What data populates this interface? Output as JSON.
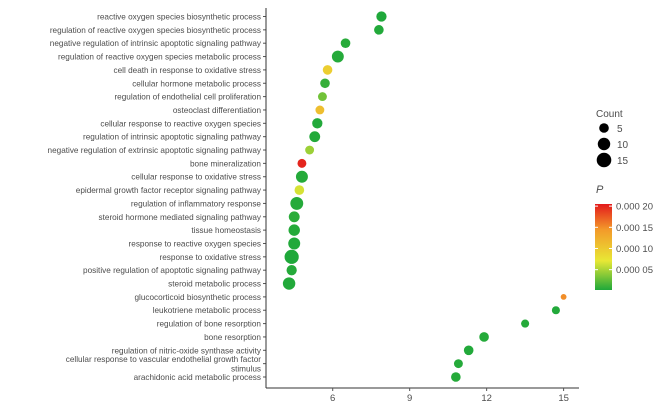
{
  "chart_data": {
    "type": "scatter",
    "title": "",
    "xlabel": "",
    "ylabel": "",
    "xlim": [
      3.4,
      15.6
    ],
    "x_ticks": [
      6,
      9,
      12,
      15
    ],
    "x_tick_labels": [
      "6",
      "9",
      "12",
      "15"
    ],
    "grid": false,
    "categories": [
      "reactive oxygen species biosynthetic process",
      "regulation of reactive oxygen species biosynthetic process",
      "negative regulation of intrinsic apoptotic signaling pathway",
      "regulation of reactive oxygen species metabolic process",
      "cell death in response to oxidative stress",
      "cellular hormone metabolic process",
      "regulation of endothelial cell proliferation",
      "osteoclast differentiation",
      "cellular response to reactive oxygen species",
      "regulation of intrinsic apoptotic signaling pathway",
      "negative regulation of extrinsic apoptotic signaling pathway",
      "bone mineralization",
      "cellular response to oxidative stress",
      "epidermal growth factor receptor signaling pathway",
      "regulation of inflammatory response",
      "steroid hormone mediated signaling pathway",
      "tissue homeostasis",
      "response to reactive oxygen species",
      "response to oxidative stress",
      "positive regulation of apoptotic signaling pathway",
      "steroid metabolic process",
      "glucocorticoid biosynthetic process",
      "leukotriene metabolic process",
      "regulation of bone resorption",
      "bone resorption",
      "regulation of nitric-oxide synthase activity",
      "cellular response to vascular endothelial growth factor stimulus",
      "arachidonic acid metabolic process"
    ],
    "category_label_lines": [
      [
        "reactive oxygen species biosynthetic process"
      ],
      [
        "regulation of reactive oxygen species biosynthetic process"
      ],
      [
        "negative regulation of intrinsic apoptotic signaling pathway"
      ],
      [
        "regulation of reactive oxygen species metabolic process"
      ],
      [
        "cell death in response to oxidative stress"
      ],
      [
        "cellular hormone metabolic process"
      ],
      [
        "regulation of endothelial cell proliferation"
      ],
      [
        "osteoclast differentiation"
      ],
      [
        "cellular response to reactive oxygen species"
      ],
      [
        "regulation of intrinsic apoptotic signaling pathway"
      ],
      [
        "negative regulation of extrinsic apoptotic signaling pathway"
      ],
      [
        "bone mineralization"
      ],
      [
        "cellular response to oxidative stress"
      ],
      [
        "epidermal growth factor receptor signaling pathway"
      ],
      [
        "regulation of inflammatory response"
      ],
      [
        "steroid hormone mediated signaling pathway"
      ],
      [
        "tissue homeostasis"
      ],
      [
        "response to reactive oxygen species"
      ],
      [
        "response to oxidative stress"
      ],
      [
        "positive regulation of apoptotic signaling pathway"
      ],
      [
        "steroid metabolic process"
      ],
      [
        "glucocorticoid biosynthetic process"
      ],
      [
        "leukotriene metabolic process"
      ],
      [
        "regulation of bone resorption"
      ],
      [
        "bone resorption"
      ],
      [
        "regulation of nitric-oxide synthase activity"
      ],
      [
        "cellular response to vascular endothelial growth factor",
        "stimulus"
      ],
      [
        "arachidonic acid metabolic process"
      ]
    ],
    "x": [
      7.9,
      7.8,
      6.5,
      6.2,
      5.8,
      5.7,
      5.6,
      5.5,
      5.4,
      5.3,
      5.1,
      4.8,
      4.8,
      4.7,
      4.6,
      4.5,
      4.5,
      4.5,
      4.4,
      4.4,
      4.3,
      15.0,
      14.7,
      13.5,
      11.9,
      11.3,
      10.9,
      10.8
    ],
    "count": [
      6,
      5,
      5,
      9,
      5,
      5,
      4,
      4,
      6,
      7,
      4,
      4,
      9,
      5,
      11,
      7,
      8,
      9,
      14,
      6,
      10,
      1,
      3,
      3,
      5,
      5,
      4,
      5
    ],
    "p_value": [
      2e-06,
      3e-06,
      5e-06,
      4e-06,
      9.5e-05,
      1e-05,
      3e-05,
      0.00011,
      3e-06,
      3e-06,
      4.5e-05,
      0.0002,
      4e-06,
      6.5e-05,
      4e-06,
      6e-06,
      4e-06,
      3e-06,
      2e-06,
      4e-06,
      3e-06,
      0.00015,
      3e-06,
      4e-06,
      4e-06,
      3e-06,
      4e-06,
      4e-06
    ],
    "legend_size": {
      "title": "Count",
      "values": [
        5,
        10,
        15
      ],
      "labels": [
        "5",
        "10",
        "15"
      ]
    },
    "legend_color": {
      "title": "P",
      "range": [
        2e-06,
        0.000205
      ],
      "ticks": [
        5e-05,
        0.0001,
        0.00015,
        0.0002
      ],
      "tick_labels": [
        "0.000 05",
        "0.000 10",
        "0.000 15",
        "0.000 20"
      ],
      "colors": [
        "#1fa83a",
        "#e8e835",
        "#f39a2a",
        "#e31a1c"
      ]
    },
    "legend_placement": "right"
  }
}
